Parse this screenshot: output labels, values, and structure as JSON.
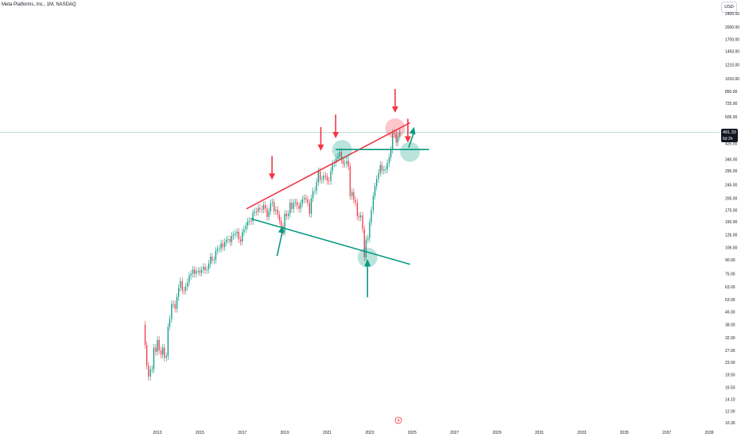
{
  "title": "Meta Platforms, Inc., 1M, NASDAQ",
  "currency": "USD",
  "last_price": "491.33",
  "countdown": "6d 2h",
  "colors": {
    "up": "#089981",
    "down": "#f23645",
    "price_line": "#7fcbc0",
    "resistance": "#f23645",
    "support": "#089981"
  },
  "icons": [
    "lightning-icon",
    "arrow-icon",
    "circle-marker-icon"
  ],
  "chart_data": {
    "type": "candlestick",
    "title": "Meta Platforms, Inc., 1M, NASDAQ",
    "scale": "log",
    "grid": false,
    "y_ticks": [
      "2400.00",
      "2000.00",
      "1700.00",
      "1450.00",
      "1210.00",
      "1010.00",
      "850.00",
      "725.00",
      "605.00",
      "425.00",
      "345.00",
      "295.00",
      "245.00",
      "205.00",
      "175.00",
      "150.00",
      "126.00",
      "106.00",
      "90.00",
      "75.00",
      "63.00",
      "53.00",
      "45.00",
      "38.00",
      "32.00",
      "27.00",
      "23.00",
      "19.50",
      "16.50",
      "14.10",
      "12.00",
      "10.30"
    ],
    "x_ticks": [
      "2013",
      "2015",
      "2017",
      "2019",
      "2021",
      "2023",
      "2025",
      "2027",
      "2029",
      "2031",
      "2033",
      "2035",
      "2037",
      "2039"
    ],
    "x_range": [
      2012.3,
      2039.6
    ],
    "y_range": [
      10.3,
      2400
    ],
    "last_price": 491.33,
    "monthly_close": [
      [
        2012.42,
        29
      ],
      [
        2012.5,
        22
      ],
      [
        2012.58,
        19
      ],
      [
        2012.67,
        21
      ],
      [
        2012.75,
        21
      ],
      [
        2012.83,
        28
      ],
      [
        2012.92,
        26.5
      ],
      [
        2013.0,
        31
      ],
      [
        2013.08,
        27
      ],
      [
        2013.17,
        25.5
      ],
      [
        2013.25,
        28
      ],
      [
        2013.33,
        24.5
      ],
      [
        2013.42,
        25
      ],
      [
        2013.5,
        37
      ],
      [
        2013.58,
        41
      ],
      [
        2013.67,
        50
      ],
      [
        2013.75,
        50
      ],
      [
        2013.83,
        47
      ],
      [
        2013.92,
        55
      ],
      [
        2014.0,
        62
      ],
      [
        2014.08,
        68
      ],
      [
        2014.17,
        60
      ],
      [
        2014.25,
        59.8
      ],
      [
        2014.33,
        63
      ],
      [
        2014.42,
        67
      ],
      [
        2014.5,
        73
      ],
      [
        2014.58,
        74.8
      ],
      [
        2014.67,
        79
      ],
      [
        2014.75,
        75
      ],
      [
        2014.83,
        77.7
      ],
      [
        2014.92,
        78
      ],
      [
        2015.0,
        75.9
      ],
      [
        2015.08,
        79
      ],
      [
        2015.17,
        82
      ],
      [
        2015.25,
        78.8
      ],
      [
        2015.33,
        79.2
      ],
      [
        2015.42,
        85.8
      ],
      [
        2015.5,
        94
      ],
      [
        2015.58,
        89.4
      ],
      [
        2015.67,
        89.9
      ],
      [
        2015.75,
        101.9
      ],
      [
        2015.83,
        104.2
      ],
      [
        2015.92,
        104.7
      ],
      [
        2016.0,
        112.2
      ],
      [
        2016.08,
        106.9
      ],
      [
        2016.17,
        114.1
      ],
      [
        2016.25,
        117.6
      ],
      [
        2016.33,
        118.8
      ],
      [
        2016.42,
        114.3
      ],
      [
        2016.5,
        123.9
      ],
      [
        2016.58,
        126.1
      ],
      [
        2016.67,
        128.3
      ],
      [
        2016.75,
        130.99
      ],
      [
        2016.83,
        118.4
      ],
      [
        2016.92,
        115
      ],
      [
        2017.0,
        130.3
      ],
      [
        2017.08,
        135.5
      ],
      [
        2017.17,
        142
      ],
      [
        2017.25,
        150.2
      ],
      [
        2017.33,
        151.5
      ],
      [
        2017.42,
        151
      ],
      [
        2017.5,
        169.2
      ],
      [
        2017.58,
        171.97
      ],
      [
        2017.67,
        170.9
      ],
      [
        2017.75,
        180.1
      ],
      [
        2017.83,
        177.2
      ],
      [
        2017.92,
        176.5
      ],
      [
        2018.0,
        186.9
      ],
      [
        2018.08,
        178.3
      ],
      [
        2018.17,
        159.8
      ],
      [
        2018.25,
        172
      ],
      [
        2018.33,
        191.8
      ],
      [
        2018.42,
        194.3
      ],
      [
        2018.5,
        172.6
      ],
      [
        2018.58,
        175.7
      ],
      [
        2018.67,
        164.5
      ],
      [
        2018.75,
        151.8
      ],
      [
        2018.83,
        140.6
      ],
      [
        2018.92,
        131.1
      ],
      [
        2019.0,
        166.7
      ],
      [
        2019.08,
        161.5
      ],
      [
        2019.17,
        166.7
      ],
      [
        2019.25,
        193.4
      ],
      [
        2019.33,
        177.5
      ],
      [
        2019.42,
        193
      ],
      [
        2019.5,
        194.2
      ],
      [
        2019.58,
        185.7
      ],
      [
        2019.67,
        178.1
      ],
      [
        2019.75,
        191.6
      ],
      [
        2019.83,
        201.6
      ],
      [
        2019.92,
        205.3
      ],
      [
        2020.0,
        201.9
      ],
      [
        2020.08,
        192.5
      ],
      [
        2020.17,
        166.8
      ],
      [
        2020.25,
        204.7
      ],
      [
        2020.33,
        225.1
      ],
      [
        2020.42,
        227.1
      ],
      [
        2020.5,
        253.7
      ],
      [
        2020.58,
        293.2
      ],
      [
        2020.67,
        261.9
      ],
      [
        2020.75,
        263.1
      ],
      [
        2020.83,
        276.97
      ],
      [
        2020.92,
        273.2
      ],
      [
        2021.0,
        258.3
      ],
      [
        2021.08,
        257.6
      ],
      [
        2021.17,
        294.5
      ],
      [
        2021.25,
        325.1
      ],
      [
        2021.33,
        328.7
      ],
      [
        2021.42,
        347.7
      ],
      [
        2021.5,
        356.3
      ],
      [
        2021.58,
        379.4
      ],
      [
        2021.67,
        339.4
      ],
      [
        2021.75,
        323.6
      ],
      [
        2021.83,
        324.5
      ],
      [
        2021.92,
        336.4
      ],
      [
        2022.0,
        313.3
      ],
      [
        2022.08,
        211
      ],
      [
        2022.17,
        222.4
      ],
      [
        2022.25,
        200.5
      ],
      [
        2022.33,
        193.6
      ],
      [
        2022.42,
        161.3
      ],
      [
        2022.5,
        159.1
      ],
      [
        2022.58,
        162.9
      ],
      [
        2022.67,
        135.7
      ],
      [
        2022.75,
        93.2
      ],
      [
        2022.83,
        118.1
      ],
      [
        2022.92,
        120.3
      ],
      [
        2023.0,
        148.97
      ],
      [
        2023.08,
        174.9
      ],
      [
        2023.17,
        211.9
      ],
      [
        2023.25,
        240.3
      ],
      [
        2023.33,
        264.7
      ],
      [
        2023.42,
        286.98
      ],
      [
        2023.5,
        318.6
      ],
      [
        2023.58,
        295.9
      ],
      [
        2023.67,
        300.2
      ],
      [
        2023.75,
        301.3
      ],
      [
        2023.83,
        327.2
      ],
      [
        2023.92,
        353.96
      ],
      [
        2024.0,
        390.1
      ],
      [
        2024.08,
        490.1
      ],
      [
        2024.17,
        485.6
      ],
      [
        2024.25,
        430.2
      ],
      [
        2024.33,
        466.8
      ],
      [
        2024.42,
        491.33
      ]
    ],
    "annotations": {
      "resistance_line": [
        [
          2017.2,
          178
        ],
        [
          2024.9,
          560
        ]
      ],
      "upper_support_line": [
        [
          2021.4,
          392
        ],
        [
          2025.8,
          392
        ]
      ],
      "lower_support_line": [
        [
          2017.4,
          156
        ],
        [
          2024.9,
          85
        ]
      ],
      "circles": [
        [
          2021.7,
          390
        ],
        [
          2024.2,
          520
        ],
        [
          2024.9,
          380
        ],
        [
          2022.9,
          93
        ]
      ],
      "down_arrows": [
        [
          2018.4,
          262
        ],
        [
          2020.7,
          385
        ],
        [
          2021.4,
          455
        ],
        [
          2024.2,
          640
        ],
        [
          2024.8,
          430
        ]
      ],
      "up_arrows": [
        [
          2018.9,
          142
        ],
        [
          2022.9,
          91
        ],
        [
          2025.1,
          530
        ]
      ]
    }
  }
}
